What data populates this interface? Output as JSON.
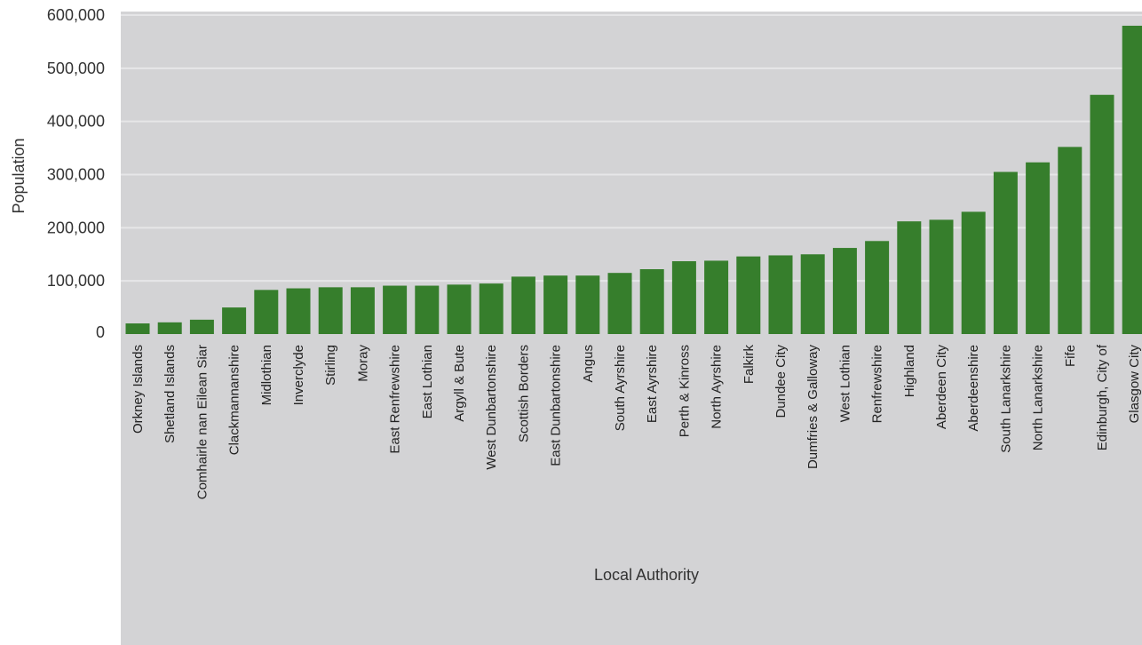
{
  "chart_data": {
    "type": "bar",
    "xlabel": "Local Authority",
    "ylabel": "Population",
    "ylim": [
      0,
      600000
    ],
    "yticks": [
      0,
      100000,
      200000,
      300000,
      400000,
      500000,
      600000
    ],
    "ytick_labels": [
      "0",
      "100,000",
      "200,000",
      "300,000",
      "400,000",
      "500,000",
      "600,000"
    ],
    "grid": true,
    "bar_color": "#367e2c",
    "plot_background": "#d3d3d5",
    "categories": [
      "Orkney Islands",
      "Shetland Islands",
      "Comhairle nan Eilean Siar",
      "Clackmannanshire",
      "Midlothian",
      "Inverclyde",
      "Stirling",
      "Moray",
      "East Renfrewshire",
      "East Lothian",
      "Argyll & Bute",
      "West Dunbartonshire",
      "Scottish Borders",
      "East Dunbartonshire",
      "Angus",
      "South Ayrshire",
      "East Ayrshire",
      "Perth & Kinross",
      "North Ayrshire",
      "Falkirk",
      "Dundee City",
      "Dumfries & Galloway",
      "West Lothian",
      "Renfrewshire",
      "Highland",
      "Aberdeen City",
      "Aberdeenshire",
      "South Lanarkshire",
      "North Lanarkshire",
      "Fife",
      "Edinburgh, City of",
      "Glasgow City"
    ],
    "values": [
      20000,
      22000,
      27000,
      50000,
      83000,
      86000,
      88000,
      88000,
      91000,
      91000,
      93000,
      95000,
      108000,
      110000,
      110000,
      115000,
      122000,
      137000,
      138000,
      146000,
      148000,
      150000,
      162000,
      175000,
      212000,
      215000,
      230000,
      305000,
      323000,
      352000,
      450000,
      580000
    ]
  }
}
